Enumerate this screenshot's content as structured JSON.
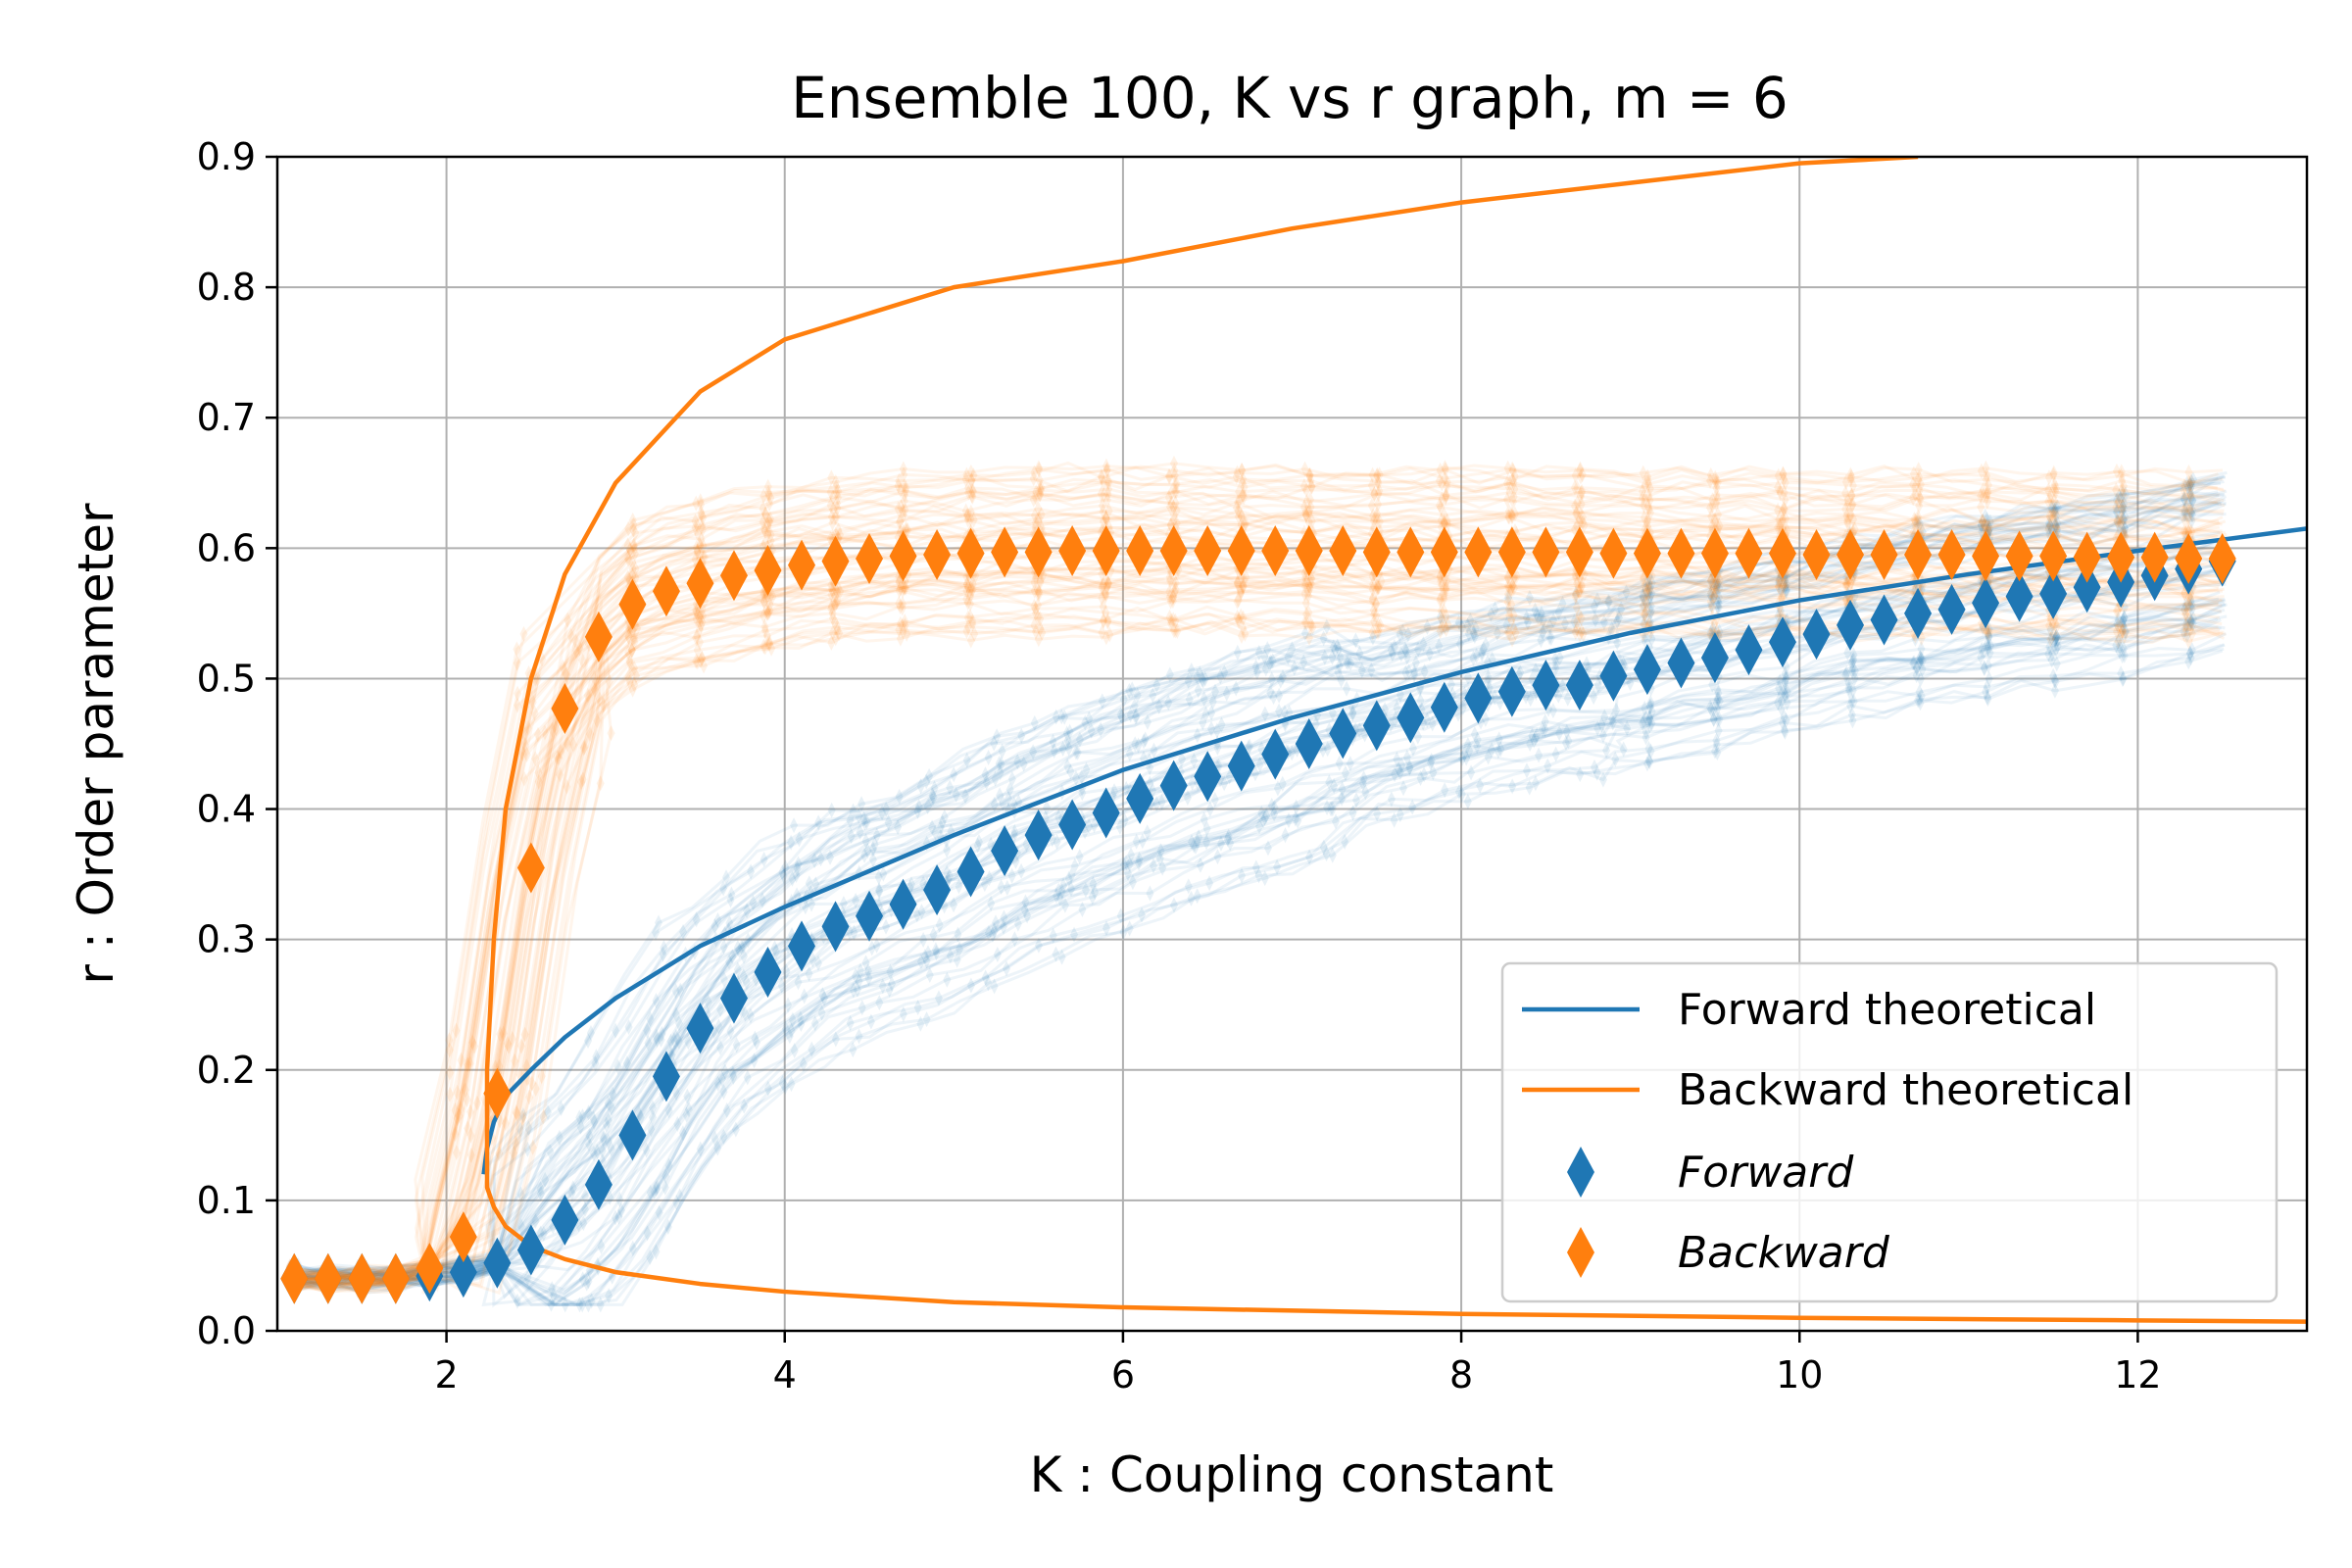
{
  "chart_data": {
    "type": "line",
    "title": "Ensemble 100, K vs r graph, m = 6",
    "xlabel": "K : Coupling constant",
    "ylabel": "r : Order parameter",
    "xlim": [
      1.0,
      13.0
    ],
    "ylim": [
      0.0,
      0.9
    ],
    "xticks": [
      2,
      4,
      6,
      8,
      10,
      12
    ],
    "yticks": [
      0.0,
      0.1,
      0.2,
      0.3,
      0.4,
      0.5,
      0.6,
      0.7,
      0.8,
      0.9
    ],
    "xtick_labels": [
      "2",
      "4",
      "6",
      "8",
      "10",
      "12"
    ],
    "ytick_labels": [
      "0.0",
      "0.1",
      "0.2",
      "0.3",
      "0.4",
      "0.5",
      "0.6",
      "0.7",
      "0.8",
      "0.9"
    ],
    "grid": true,
    "legend_position": "lower-right",
    "colors": {
      "forward": "#1f77b4",
      "backward": "#ff7f0e"
    },
    "ensemble_size": 100,
    "series": [
      {
        "name": "Forward theoretical",
        "kind": "line",
        "color": "#1f77b4",
        "x": [
          2.22,
          2.24,
          2.28,
          2.35,
          2.5,
          2.7,
          3.0,
          3.5,
          4.0,
          5.0,
          6.0,
          7.0,
          8.0,
          9.0,
          10.0,
          11.0,
          12.0,
          13.0
        ],
        "y": [
          0.12,
          0.14,
          0.16,
          0.18,
          0.2,
          0.225,
          0.255,
          0.295,
          0.325,
          0.38,
          0.43,
          0.47,
          0.505,
          0.535,
          0.56,
          0.58,
          0.598,
          0.615
        ]
      },
      {
        "name": "Backward theoretical",
        "kind": "line",
        "color": "#ff7f0e",
        "x": [
          13.0,
          12.0,
          10.0,
          8.0,
          6.0,
          5.0,
          4.0,
          3.5,
          3.0,
          2.7,
          2.5,
          2.35,
          2.28,
          2.24,
          2.24,
          2.28,
          2.35,
          2.5,
          2.7,
          3.0,
          3.5,
          4.0,
          5.0,
          6.0,
          7.0,
          8.0,
          9.0,
          10.0,
          10.7
        ],
        "y": [
          0.007,
          0.008,
          0.01,
          0.013,
          0.018,
          0.022,
          0.03,
          0.036,
          0.045,
          0.055,
          0.065,
          0.08,
          0.095,
          0.11,
          0.2,
          0.3,
          0.4,
          0.5,
          0.58,
          0.65,
          0.72,
          0.76,
          0.8,
          0.82,
          0.845,
          0.865,
          0.88,
          0.895,
          0.9
        ]
      },
      {
        "name": "Forward",
        "kind": "marker",
        "color": "#1f77b4",
        "x": [
          1.1,
          1.3,
          1.5,
          1.7,
          1.9,
          2.1,
          2.3,
          2.5,
          2.7,
          2.9,
          3.1,
          3.3,
          3.5,
          3.7,
          3.9,
          4.1,
          4.3,
          4.5,
          4.7,
          4.9,
          5.1,
          5.3,
          5.5,
          5.7,
          5.9,
          6.1,
          6.3,
          6.5,
          6.7,
          6.9,
          7.1,
          7.3,
          7.5,
          7.7,
          7.9,
          8.1,
          8.3,
          8.5,
          8.7,
          8.9,
          9.1,
          9.3,
          9.5,
          9.7,
          9.9,
          10.1,
          10.3,
          10.5,
          10.7,
          10.9,
          11.1,
          11.3,
          11.5,
          11.7,
          11.9,
          12.1,
          12.3,
          12.5
        ],
        "y": [
          0.04,
          0.04,
          0.04,
          0.04,
          0.042,
          0.045,
          0.052,
          0.062,
          0.085,
          0.112,
          0.15,
          0.195,
          0.232,
          0.255,
          0.275,
          0.295,
          0.31,
          0.318,
          0.327,
          0.338,
          0.352,
          0.368,
          0.38,
          0.388,
          0.397,
          0.408,
          0.418,
          0.425,
          0.433,
          0.442,
          0.45,
          0.458,
          0.464,
          0.47,
          0.478,
          0.485,
          0.49,
          0.495,
          0.495,
          0.502,
          0.507,
          0.512,
          0.516,
          0.522,
          0.528,
          0.534,
          0.541,
          0.545,
          0.55,
          0.553,
          0.558,
          0.563,
          0.565,
          0.57,
          0.574,
          0.579,
          0.584,
          0.59
        ]
      },
      {
        "name": "Backward",
        "kind": "marker",
        "color": "#ff7f0e",
        "x": [
          1.1,
          1.3,
          1.5,
          1.7,
          1.9,
          2.1,
          2.3,
          2.5,
          2.7,
          2.9,
          3.1,
          3.3,
          3.5,
          3.7,
          3.9,
          4.1,
          4.3,
          4.5,
          4.7,
          4.9,
          5.1,
          5.3,
          5.5,
          5.7,
          5.9,
          6.1,
          6.3,
          6.5,
          6.7,
          6.9,
          7.1,
          7.3,
          7.5,
          7.7,
          7.9,
          8.1,
          8.3,
          8.5,
          8.7,
          8.9,
          9.1,
          9.3,
          9.5,
          9.7,
          9.9,
          10.1,
          10.3,
          10.5,
          10.7,
          10.9,
          11.1,
          11.3,
          11.5,
          11.7,
          11.9,
          12.1,
          12.3,
          12.5
        ],
        "y": [
          0.04,
          0.04,
          0.04,
          0.04,
          0.048,
          0.072,
          0.182,
          0.355,
          0.477,
          0.532,
          0.557,
          0.567,
          0.573,
          0.579,
          0.583,
          0.587,
          0.59,
          0.592,
          0.594,
          0.595,
          0.596,
          0.597,
          0.597,
          0.598,
          0.598,
          0.598,
          0.598,
          0.598,
          0.598,
          0.598,
          0.598,
          0.598,
          0.597,
          0.597,
          0.597,
          0.597,
          0.597,
          0.597,
          0.597,
          0.596,
          0.596,
          0.596,
          0.596,
          0.596,
          0.596,
          0.595,
          0.595,
          0.595,
          0.595,
          0.595,
          0.594,
          0.594,
          0.594,
          0.593,
          0.593,
          0.593,
          0.592,
          0.592
        ]
      }
    ]
  }
}
